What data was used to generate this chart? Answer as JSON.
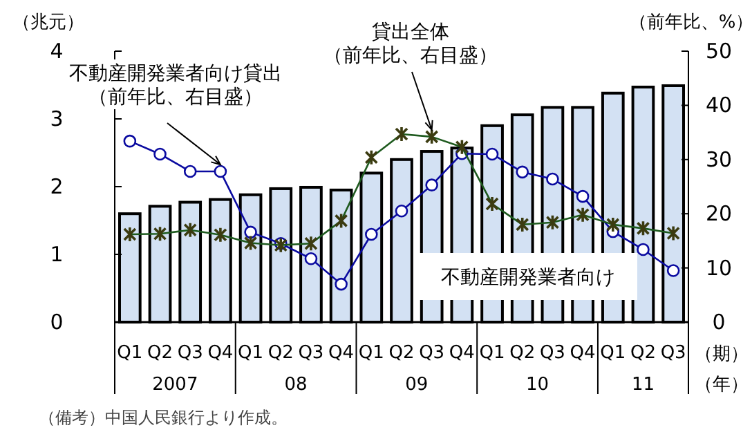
{
  "chart_data": {
    "type": "bar",
    "ylabel": "（兆元）",
    "y2label": "（前年比、%）",
    "xlabel": "（期）",
    "categories": [
      "Q1",
      "Q2",
      "Q3",
      "Q4",
      "Q1",
      "Q2",
      "Q3",
      "Q4",
      "Q1",
      "Q2",
      "Q3",
      "Q4",
      "Q1",
      "Q2",
      "Q3",
      "Q4",
      "Q1",
      "Q2",
      "Q3"
    ],
    "ylim": [
      0,
      4
    ],
    "yticks": [
      0,
      1,
      2,
      3,
      4
    ],
    "y2lim": [
      0,
      50
    ],
    "y2ticks": [
      0,
      10,
      20,
      30,
      40,
      50
    ],
    "series": [
      {
        "name": "不動産開発業者向け",
        "color": "#d3e1f3",
        "values": [
          1.6,
          1.71,
          1.77,
          1.81,
          1.88,
          1.97,
          1.99,
          1.95,
          2.2,
          2.4,
          2.52,
          2.57,
          2.9,
          3.06,
          3.17,
          3.17,
          3.38,
          3.47,
          3.49
        ]
      },
      {
        "type": "line",
        "axis": "y2",
        "marker": "circle",
        "name": "不動産開発業者向け貸出（前年比、右目盛）",
        "color": "#0a0aa0",
        "values": [
          33.4,
          31.0,
          27.8,
          27.8,
          16.6,
          14.5,
          11.7,
          7.0,
          16.2,
          20.5,
          25.3,
          31.1,
          31.0,
          27.7,
          26.4,
          23.2,
          16.7,
          13.4,
          9.5
        ]
      },
      {
        "type": "line",
        "axis": "y2",
        "marker": "cross",
        "name": "貸出全体（前年比、右目盛）",
        "color": "#1e5a1e",
        "values": [
          16.2,
          16.3,
          17.0,
          16.1,
          14.6,
          14.2,
          14.5,
          18.7,
          30.4,
          34.7,
          34.2,
          32.3,
          21.8,
          18.0,
          18.4,
          19.8,
          18.0,
          17.3,
          16.4
        ]
      }
    ],
    "annotations": [
      "2007",
      "08",
      "09",
      "10",
      "11",
      "（年）",
      "（備考）中国人民銀行より作成。"
    ],
    "legend": false,
    "grid": false
  }
}
